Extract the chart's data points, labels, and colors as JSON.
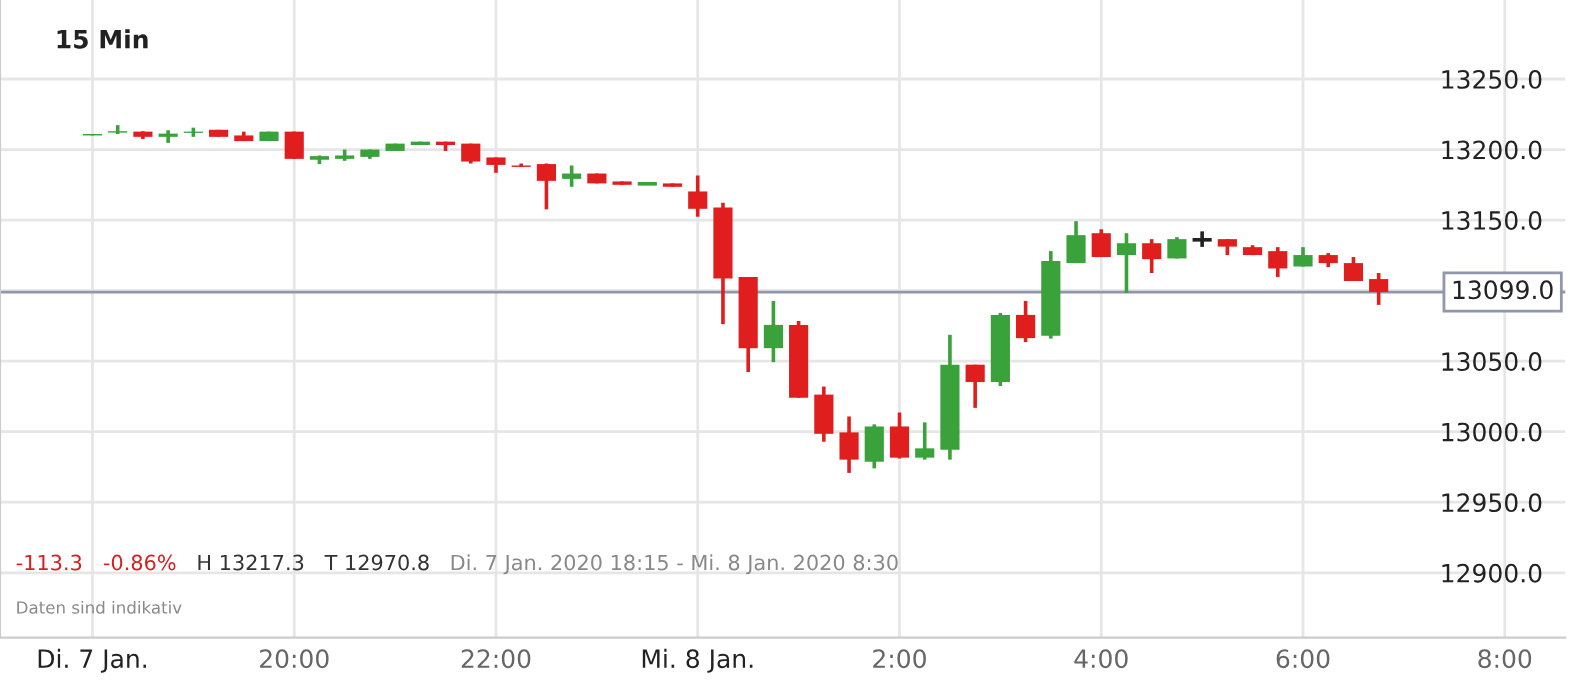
{
  "chart_data": {
    "type": "candlestick",
    "title": "15 Min",
    "x": [
      "2020-01-07T18:00",
      "2020-01-07T18:15",
      "2020-01-07T18:30",
      "2020-01-07T18:45",
      "2020-01-07T19:00",
      "2020-01-07T19:15",
      "2020-01-07T19:30",
      "2020-01-07T19:45",
      "2020-01-07T20:00",
      "2020-01-07T20:15",
      "2020-01-07T20:30",
      "2020-01-07T20:45",
      "2020-01-07T21:00",
      "2020-01-07T21:15",
      "2020-01-07T21:30",
      "2020-01-07T21:45",
      "2020-01-07T22:00",
      "2020-01-07T22:15",
      "2020-01-07T22:30",
      "2020-01-07T22:45",
      "2020-01-07T23:00",
      "2020-01-07T23:15",
      "2020-01-07T23:30",
      "2020-01-07T23:45",
      "2020-01-08T00:00",
      "2020-01-08T00:15",
      "2020-01-08T00:30",
      "2020-01-08T00:45",
      "2020-01-08T01:00",
      "2020-01-08T01:15",
      "2020-01-08T01:30",
      "2020-01-08T01:45",
      "2020-01-08T02:00",
      "2020-01-08T02:15",
      "2020-01-08T02:30",
      "2020-01-08T02:45",
      "2020-01-08T03:00",
      "2020-01-08T03:15",
      "2020-01-08T03:30",
      "2020-01-08T03:45",
      "2020-01-08T04:00",
      "2020-01-08T04:15",
      "2020-01-08T04:30",
      "2020-01-08T04:45",
      "2020-01-08T05:00",
      "2020-01-08T05:15",
      "2020-01-08T05:30",
      "2020-01-08T05:45",
      "2020-01-08T06:00",
      "2020-01-08T06:15",
      "2020-01-08T06:30",
      "2020-01-08T06:45"
    ],
    "ohlc": [
      [
        13210,
        13211,
        13210,
        13211
      ],
      [
        13212,
        13217.3,
        13211,
        13213
      ],
      [
        13212.7,
        13213,
        13207.5,
        13209
      ],
      [
        13209,
        13213.7,
        13204.7,
        13211.3
      ],
      [
        13211.8,
        13215.5,
        13209,
        13212.7
      ],
      [
        13214,
        13214,
        13209,
        13209
      ],
      [
        13210,
        13212.7,
        13206,
        13206
      ],
      [
        13206,
        13212.7,
        13206,
        13212.7
      ],
      [
        13212.7,
        13212.7,
        13193.4,
        13193.4
      ],
      [
        13193.7,
        13195.8,
        13189.7,
        13194.4
      ],
      [
        13193.4,
        13200,
        13192,
        13195.8
      ],
      [
        13194.8,
        13200,
        13193.4,
        13200
      ],
      [
        13199,
        13204.2,
        13199,
        13204.2
      ],
      [
        13203.2,
        13205.6,
        13203.2,
        13205.6
      ],
      [
        13205.6,
        13205.6,
        13199,
        13203.2
      ],
      [
        13204.2,
        13204.2,
        13190.1,
        13191.5
      ],
      [
        13194.4,
        13194.4,
        13183.5,
        13189.1
      ],
      [
        13188.7,
        13190.1,
        13187.7,
        13187.7
      ],
      [
        13189.7,
        13190.1,
        13157.6,
        13177.8
      ],
      [
        13179.2,
        13188.7,
        13173.6,
        13183
      ],
      [
        13183,
        13183,
        13176,
        13176
      ],
      [
        13177.4,
        13177.4,
        13175,
        13175
      ],
      [
        13175.4,
        13176,
        13175.4,
        13176
      ],
      [
        13176,
        13176,
        13173.6,
        13173.6
      ],
      [
        13170.3,
        13181.6,
        13152.4,
        13158
      ],
      [
        13159,
        13162.3,
        13076.2,
        13108.6
      ],
      [
        13109.6,
        13109.6,
        13042.3,
        13059.2
      ],
      [
        13059.2,
        13092.7,
        13049.3,
        13075.7
      ],
      [
        13075.7,
        13078.5,
        13024,
        13024
      ],
      [
        13026.3,
        13032,
        12992.9,
        12998.5
      ],
      [
        12999.5,
        13010.8,
        12970.8,
        12980.2
      ],
      [
        12978.7,
        13005.2,
        12974,
        13003.7
      ],
      [
        13003.7,
        13013.6,
        12981,
        12981.6
      ],
      [
        12981.6,
        13006.6,
        12980.2,
        12988.2
      ],
      [
        12987.2,
        13068.7,
        12980.2,
        13047.5
      ],
      [
        13047.5,
        13047.5,
        13016.9,
        13035.2
      ],
      [
        13035.2,
        13084.2,
        13032.4,
        13082.8
      ],
      [
        13082.8,
        13092.7,
        13063.5,
        13066.3
      ],
      [
        13068,
        13128,
        13066,
        13121
      ],
      [
        13119.5,
        13149.2,
        13119.5,
        13139.3
      ],
      [
        13140.7,
        13143.5,
        13123.8,
        13123.8
      ],
      [
        13125.2,
        13140.7,
        13098.3,
        13133.6
      ],
      [
        13133.6,
        13136.5,
        13112.5,
        13122.3
      ],
      [
        13122.8,
        13137.9,
        13122.8,
        13136.5
      ],
      [
        13136,
        13142,
        13131,
        13136
      ],
      [
        13136.5,
        13136.5,
        13125.2,
        13131.2
      ],
      [
        13130.8,
        13132.2,
        13125.2,
        13125.2
      ],
      [
        13128,
        13130.8,
        13109.6,
        13115.7
      ],
      [
        13117.1,
        13130.8,
        13117.1,
        13125.2
      ],
      [
        13125.2,
        13126.6,
        13116.7,
        13119.5
      ],
      [
        13119.5,
        13123.8,
        13106.8,
        13106.8
      ],
      [
        13108.2,
        13112.5,
        13089.9,
        13099
      ]
    ],
    "colors": [
      "#3aa23a",
      "#3aa23a",
      "#e01e1e",
      "#3aa23a",
      "#3aa23a",
      "#e01e1e",
      "#e01e1e",
      "#3aa23a",
      "#e01e1e",
      "#3aa23a",
      "#3aa23a",
      "#3aa23a",
      "#3aa23a",
      "#3aa23a",
      "#e01e1e",
      "#e01e1e",
      "#e01e1e",
      "#e01e1e",
      "#e01e1e",
      "#3aa23a",
      "#e01e1e",
      "#e01e1e",
      "#3aa23a",
      "#e01e1e",
      "#e01e1e",
      "#e01e1e",
      "#e01e1e",
      "#3aa23a",
      "#e01e1e",
      "#e01e1e",
      "#e01e1e",
      "#3aa23a",
      "#e01e1e",
      "#3aa23a",
      "#3aa23a",
      "#e01e1e",
      "#3aa23a",
      "#e01e1e",
      "#3aa23a",
      "#3aa23a",
      "#e01e1e",
      "#3aa23a",
      "#e01e1e",
      "#3aa23a",
      "#222222",
      "#e01e1e",
      "#e01e1e",
      "#e01e1e",
      "#3aa23a",
      "#e01e1e",
      "#e01e1e",
      "#e01e1e"
    ],
    "xlim": [
      "2020-01-07T17:05",
      "2020-01-08T08:36"
    ],
    "xticks": [
      {
        "value": "2020-01-07T18:00",
        "label": "Di. 7 Jan."
      },
      {
        "value": "2020-01-07T20:00",
        "label": "20:00"
      },
      {
        "value": "2020-01-07T22:00",
        "label": "22:00"
      },
      {
        "value": "2020-01-08T00:00",
        "label": "Mi. 8 Jan."
      },
      {
        "value": "2020-01-08T02:00",
        "label": "2:00"
      },
      {
        "value": "2020-01-08T04:00",
        "label": "4:00"
      },
      {
        "value": "2020-01-08T06:00",
        "label": "6:00"
      },
      {
        "value": "2020-01-08T08:00",
        "label": "8:00"
      }
    ],
    "ylim": [
      12854,
      13306
    ],
    "yticks": [
      {
        "value": 12900,
        "label": "12900.0"
      },
      {
        "value": 12950,
        "label": "12950.0"
      },
      {
        "value": 13000,
        "label": "13000.0"
      },
      {
        "value": 13050,
        "label": "13050.0"
      },
      {
        "value": 13100,
        "label": null
      },
      {
        "value": 13150,
        "label": "13150.0"
      },
      {
        "value": 13200,
        "label": "13200.0"
      },
      {
        "value": 13250,
        "label": "13250.0"
      }
    ],
    "ref_lines": [
      {
        "axis": "y",
        "value": 13099,
        "label": "13099.0",
        "color": "#9096ab"
      }
    ],
    "grid": true,
    "annotations": [
      "-113.3",
      "-0.86%",
      "H 13217.3",
      "T 12970.8",
      "Di. 7 Jan. 2020 18:15 - Mi. 8 Jan. 2020 8:30",
      "Daten sind indikativ"
    ]
  }
}
